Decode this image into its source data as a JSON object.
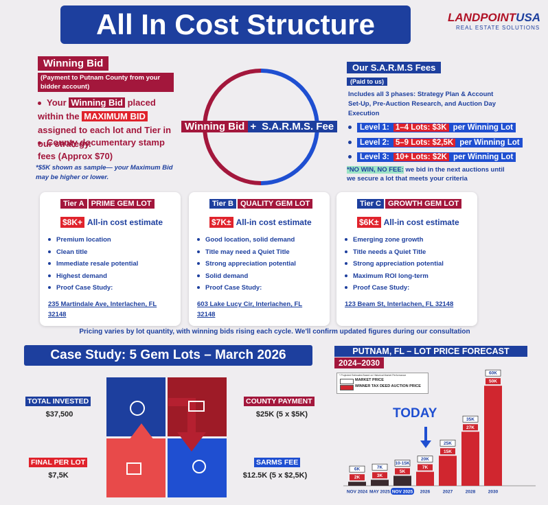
{
  "header": {
    "title": "All In Cost Structure"
  },
  "logo": {
    "brand": "LANDPOINT",
    "country": "USA",
    "tagline": "REAL ESTATE SOLUTIONS"
  },
  "winning_bid": {
    "title": "Winning Bid",
    "subtitle": "(Payment to Putnam County from your bidder account)",
    "bullets": [
      [
        "Your ",
        "Winning Bid",
        " placed within the ",
        "MAXIMUM BID",
        " assigned to each lot and Tier in our strategy."
      ],
      [
        "County documentary stamp fees (Approx $70)"
      ]
    ],
    "note": "*$5K shown as sample— your Maximum Bid may be higher or lower."
  },
  "formula": {
    "left": "Winning Bid",
    "operator": "+",
    "right": "S.A.R.M.S. Fee"
  },
  "sarms": {
    "title": "Our S.A.R.M.S Fees",
    "subtitle": "(Paid to us)",
    "description": "Includes all 3 phases: Strategy Plan & Account Set-Up, Pre-Auction Research, and Auction Day Execution",
    "levels": [
      {
        "level": "Level 1:",
        "range": "1–4 Lots: $3K",
        "unit": "per Winning Lot"
      },
      {
        "level": "Level 2:",
        "range": "5–9 Lots: $2,5K",
        "unit": "per Winning Lot"
      },
      {
        "level": "Level 3:",
        "range": "10+ Lots: $2K",
        "unit": "per Winning Lot"
      }
    ],
    "note_highlight": "*NO WIN, NO FEE:",
    "note": " we bid in the next auctions until we secure a lot that meets your criteria"
  },
  "tiers": [
    {
      "tag": "Tier A",
      "name": "PRIME GEM LOT",
      "price": "$8K+",
      "price_text": "All-in cost estimate",
      "bullets": [
        "Premium location",
        "Clean title",
        "Immediate resale potential",
        "Highest demand",
        "Proof Case Study:"
      ],
      "address": "235 Martindale Ave, Interlachen, FL 32148"
    },
    {
      "tag": "Tier B",
      "name": "QUALITY GEM LOT",
      "price": "$7K±",
      "price_text": "All-in cost estimate",
      "bullets": [
        "Good location, solid demand",
        "Title may need a Quiet Title",
        "Strong appreciation potential",
        "Solid demand",
        "Proof Case Study:"
      ],
      "address": "603 Lake Lucy Cir, Interlachen, FL 32148"
    },
    {
      "tag": "Tier C",
      "name": "GROWTH GEM LOT",
      "price": "$6K±",
      "price_text": "All-in cost estimate",
      "bullets": [
        "Emerging zone growth",
        "Title needs a Quiet Title",
        "Strong appreciation potential",
        "Maximum ROI long-term",
        "Proof Case Study:"
      ],
      "address": "123 Beam St, Interlachen, FL 32148"
    }
  ],
  "pricing_note": "Pricing varies by lot quantity, with winning bids rising each cycle. We'll confirm updated figures during our consultation",
  "case_study": {
    "title": "Case Study: 5 Gem Lots – March 2026",
    "items": [
      {
        "label": "TOTAL INVESTED",
        "value": "$37,500"
      },
      {
        "label": "COUNTY PAYMENT",
        "value": "$25K (5 x $5K)"
      },
      {
        "label": "FINAL PER LOT",
        "value": "$7,5K"
      },
      {
        "label": "SARMS FEE",
        "value": "$12.5K (5 x $2,5K)"
      }
    ]
  },
  "chart_data": {
    "type": "bar",
    "title": "PUTNAM, FL – LOT PRICE FORECAST",
    "subtitle": "2024–2030",
    "legend_note": "* Projected Estimates Based on Historical Market Performance",
    "annotation": "TODAY",
    "categories": [
      "NOV 2024",
      "MAY 2025",
      "NOV 2025",
      "2026",
      "2027",
      "2028",
      "2030"
    ],
    "series": [
      {
        "name": "MARKET PRICE",
        "color": "#ffffff",
        "values": [
          6,
          7,
          null,
          20,
          25,
          35,
          60
        ],
        "value_labels": [
          "6K",
          "7K",
          "10-15K",
          "20K",
          "25K",
          "35K",
          "60K"
        ]
      },
      {
        "name": "WINNER TAX DEED AUCTION PRICE",
        "color": "#d0262f",
        "values": [
          2,
          3,
          5,
          7,
          15,
          27,
          50
        ],
        "value_labels": [
          "2K",
          "3K",
          "5K",
          "7K",
          "15K",
          "27K",
          "50K"
        ]
      }
    ]
  }
}
